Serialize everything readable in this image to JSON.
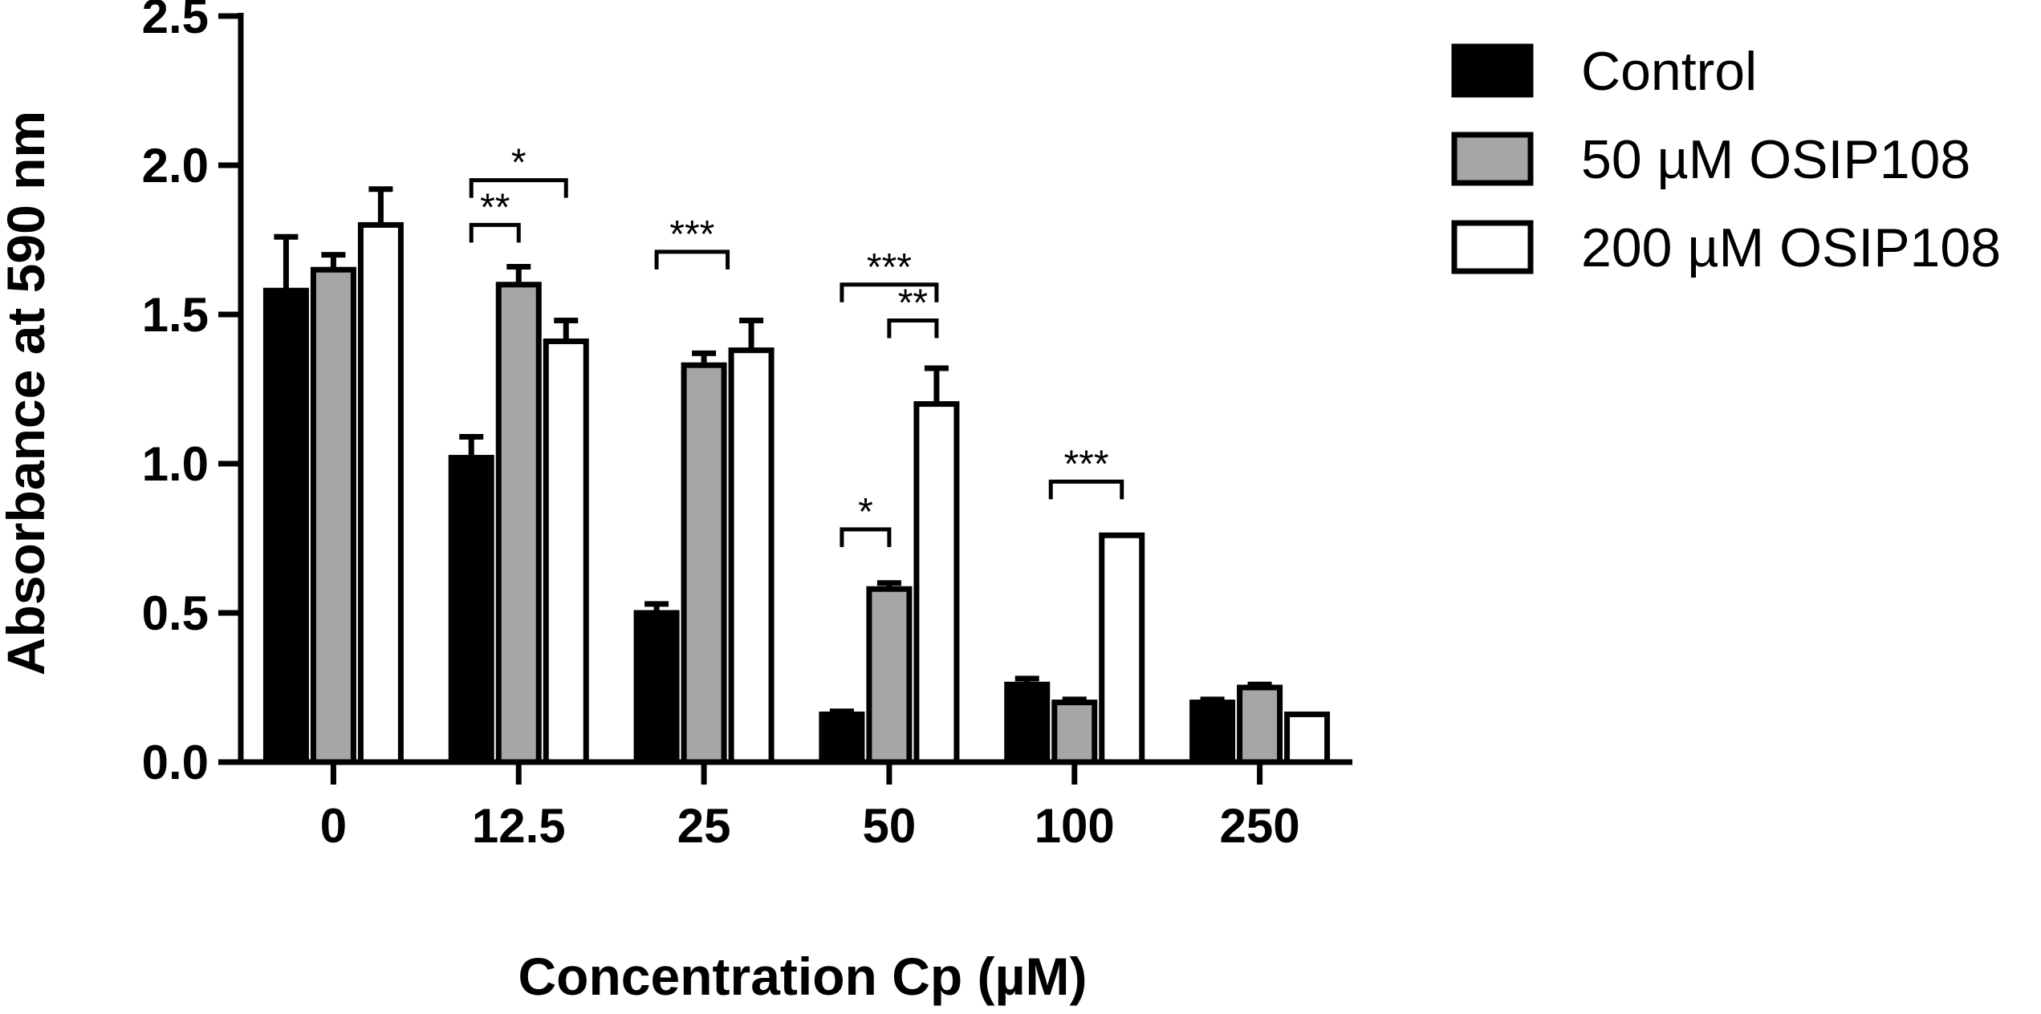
{
  "chart_data": {
    "type": "bar",
    "title": "",
    "xlabel": "Concentration Cp (µM)",
    "ylabel": "Absorbance at 590 nm",
    "ylim": [
      0,
      2.5
    ],
    "yticks": [
      "0.0",
      "0.5",
      "1.0",
      "1.5",
      "2.0",
      "2.5"
    ],
    "categories": [
      "0",
      "12.5",
      "25",
      "50",
      "100",
      "250"
    ],
    "series": [
      {
        "name": "Control",
        "fill": "#000000",
        "values": [
          1.58,
          1.02,
          0.5,
          0.16,
          0.26,
          0.2
        ],
        "errors": [
          0.18,
          0.07,
          0.03,
          0.01,
          0.02,
          0.01
        ]
      },
      {
        "name": "50 µM OSIP108",
        "fill": "#a6a6a6",
        "values": [
          1.65,
          1.6,
          1.33,
          0.58,
          0.2,
          0.25
        ],
        "errors": [
          0.05,
          0.06,
          0.04,
          0.02,
          0.01,
          0.01
        ]
      },
      {
        "name": "200 µM OSIP108",
        "fill": "#ffffff",
        "values": [
          1.8,
          1.41,
          1.38,
          1.2,
          0.76,
          0.16
        ],
        "errors": [
          0.12,
          0.07,
          0.1,
          0.12,
          0.0,
          0.0
        ]
      }
    ],
    "legend_position": "top-right",
    "significance": [
      {
        "category": 1,
        "from": 0,
        "to": 2,
        "label": "*",
        "level": 1.95
      },
      {
        "category": 1,
        "from": 0,
        "to": 1,
        "label": "**",
        "level": 1.8
      },
      {
        "category": 2,
        "from": 0,
        "to": 1.5,
        "label": "***",
        "level": 1.71
      },
      {
        "category": 3,
        "from": 0,
        "to": 2,
        "label": "***",
        "level": 1.6
      },
      {
        "category": 3,
        "from": 1,
        "to": 2,
        "label": "**",
        "level": 1.48
      },
      {
        "category": 3,
        "from": 0,
        "to": 1,
        "label": "*",
        "level": 0.78
      },
      {
        "category": 4,
        "from": 0.5,
        "to": 2,
        "label": "***",
        "level": 0.94
      }
    ]
  }
}
